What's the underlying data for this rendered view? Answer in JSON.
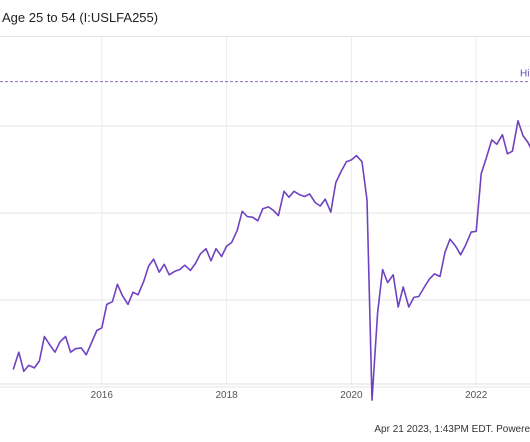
{
  "header": {
    "title": "Age 25 to 54 (I:USLFA255)"
  },
  "footer": {
    "text": "Apr 21 2023, 1:43PM EDT. Powere"
  },
  "chart_data": {
    "type": "line",
    "title": "Age 25 to 54 (I:USLFA255)",
    "xlabel": "",
    "ylabel": "",
    "x_ticks": [
      "2016",
      "2018",
      "2020",
      "2022"
    ],
    "x_range": [
      2014.58,
      2023.08
    ],
    "y_range": [
      0.5,
      5.0
    ],
    "grid": true,
    "line_color": "#6f42c1",
    "reference_line": {
      "value": 4.51,
      "label": "Hi"
    },
    "series": [
      {
        "values": [
          [
            2014.58,
            1.2
          ],
          [
            2014.67,
            1.4
          ],
          [
            2014.75,
            1.18
          ],
          [
            2014.83,
            1.25
          ],
          [
            2014.92,
            1.22
          ],
          [
            2015.0,
            1.3
          ],
          [
            2015.08,
            1.58
          ],
          [
            2015.17,
            1.48
          ],
          [
            2015.25,
            1.4
          ],
          [
            2015.33,
            1.52
          ],
          [
            2015.42,
            1.58
          ],
          [
            2015.5,
            1.4
          ],
          [
            2015.58,
            1.44
          ],
          [
            2015.67,
            1.45
          ],
          [
            2015.75,
            1.37
          ],
          [
            2015.83,
            1.5
          ],
          [
            2015.92,
            1.65
          ],
          [
            2016.0,
            1.68
          ],
          [
            2016.08,
            1.95
          ],
          [
            2016.17,
            1.98
          ],
          [
            2016.25,
            2.18
          ],
          [
            2016.33,
            2.05
          ],
          [
            2016.42,
            1.95
          ],
          [
            2016.5,
            2.09
          ],
          [
            2016.58,
            2.06
          ],
          [
            2016.67,
            2.21
          ],
          [
            2016.75,
            2.39
          ],
          [
            2016.83,
            2.47
          ],
          [
            2016.92,
            2.32
          ],
          [
            2017.0,
            2.41
          ],
          [
            2017.08,
            2.29
          ],
          [
            2017.17,
            2.33
          ],
          [
            2017.25,
            2.35
          ],
          [
            2017.33,
            2.4
          ],
          [
            2017.42,
            2.34
          ],
          [
            2017.5,
            2.42
          ],
          [
            2017.58,
            2.53
          ],
          [
            2017.67,
            2.59
          ],
          [
            2017.75,
            2.45
          ],
          [
            2017.83,
            2.59
          ],
          [
            2017.92,
            2.5
          ],
          [
            2018.0,
            2.62
          ],
          [
            2018.08,
            2.66
          ],
          [
            2018.17,
            2.8
          ],
          [
            2018.25,
            3.02
          ],
          [
            2018.33,
            2.96
          ],
          [
            2018.42,
            2.95
          ],
          [
            2018.5,
            2.91
          ],
          [
            2018.58,
            3.05
          ],
          [
            2018.67,
            3.07
          ],
          [
            2018.75,
            3.03
          ],
          [
            2018.83,
            2.97
          ],
          [
            2018.92,
            3.25
          ],
          [
            2019.0,
            3.18
          ],
          [
            2019.08,
            3.25
          ],
          [
            2019.17,
            3.21
          ],
          [
            2019.25,
            3.19
          ],
          [
            2019.33,
            3.22
          ],
          [
            2019.42,
            3.12
          ],
          [
            2019.5,
            3.08
          ],
          [
            2019.58,
            3.16
          ],
          [
            2019.67,
            3.01
          ],
          [
            2019.75,
            3.35
          ],
          [
            2019.83,
            3.47
          ],
          [
            2019.92,
            3.59
          ],
          [
            2020.0,
            3.61
          ],
          [
            2020.08,
            3.66
          ],
          [
            2020.17,
            3.59
          ],
          [
            2020.25,
            3.15
          ],
          [
            2020.33,
            0.85
          ],
          [
            2020.42,
            1.85
          ],
          [
            2020.5,
            2.35
          ],
          [
            2020.58,
            2.2
          ],
          [
            2020.67,
            2.29
          ],
          [
            2020.75,
            1.92
          ],
          [
            2020.83,
            2.15
          ],
          [
            2020.92,
            1.92
          ],
          [
            2021.0,
            2.03
          ],
          [
            2021.08,
            2.04
          ],
          [
            2021.17,
            2.15
          ],
          [
            2021.25,
            2.24
          ],
          [
            2021.33,
            2.3
          ],
          [
            2021.42,
            2.27
          ],
          [
            2021.5,
            2.55
          ],
          [
            2021.58,
            2.7
          ],
          [
            2021.67,
            2.62
          ],
          [
            2021.75,
            2.52
          ],
          [
            2021.83,
            2.63
          ],
          [
            2021.92,
            2.78
          ],
          [
            2022.0,
            2.79
          ],
          [
            2022.08,
            3.45
          ],
          [
            2022.17,
            3.65
          ],
          [
            2022.25,
            3.84
          ],
          [
            2022.33,
            3.79
          ],
          [
            2022.42,
            3.9
          ],
          [
            2022.5,
            3.68
          ],
          [
            2022.58,
            3.71
          ],
          [
            2022.67,
            4.06
          ],
          [
            2022.75,
            3.89
          ],
          [
            2022.83,
            3.81
          ],
          [
            2022.92,
            3.68
          ],
          [
            2023.0,
            3.75
          ],
          [
            2023.08,
            3.82
          ]
        ]
      }
    ]
  }
}
